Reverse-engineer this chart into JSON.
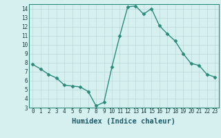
{
  "x": [
    0,
    1,
    2,
    3,
    4,
    5,
    6,
    7,
    8,
    9,
    10,
    11,
    12,
    13,
    14,
    15,
    16,
    17,
    18,
    19,
    20,
    21,
    22,
    23
  ],
  "y": [
    7.8,
    7.3,
    6.7,
    6.3,
    5.5,
    5.4,
    5.3,
    4.8,
    3.2,
    3.6,
    7.5,
    11.0,
    14.2,
    14.3,
    13.4,
    14.0,
    12.1,
    11.2,
    10.4,
    9.0,
    7.9,
    7.7,
    6.7,
    6.4
  ],
  "line_color": "#2a8a7a",
  "marker_color": "#2a8a7a",
  "bg_color": "#d6f0f0",
  "grid_color": "#b8d8d8",
  "xlabel": "Humidex (Indice chaleur)",
  "ylim": [
    3,
    14.5
  ],
  "xlim": [
    -0.5,
    23.5
  ],
  "yticks": [
    3,
    4,
    5,
    6,
    7,
    8,
    9,
    10,
    11,
    12,
    13,
    14
  ],
  "xticks": [
    0,
    1,
    2,
    3,
    4,
    5,
    6,
    7,
    8,
    9,
    10,
    11,
    12,
    13,
    14,
    15,
    16,
    17,
    18,
    19,
    20,
    21,
    22,
    23
  ],
  "tick_label_fontsize": 5.5,
  "xlabel_fontsize": 7.5,
  "line_width": 1.0,
  "marker_size": 2.5
}
